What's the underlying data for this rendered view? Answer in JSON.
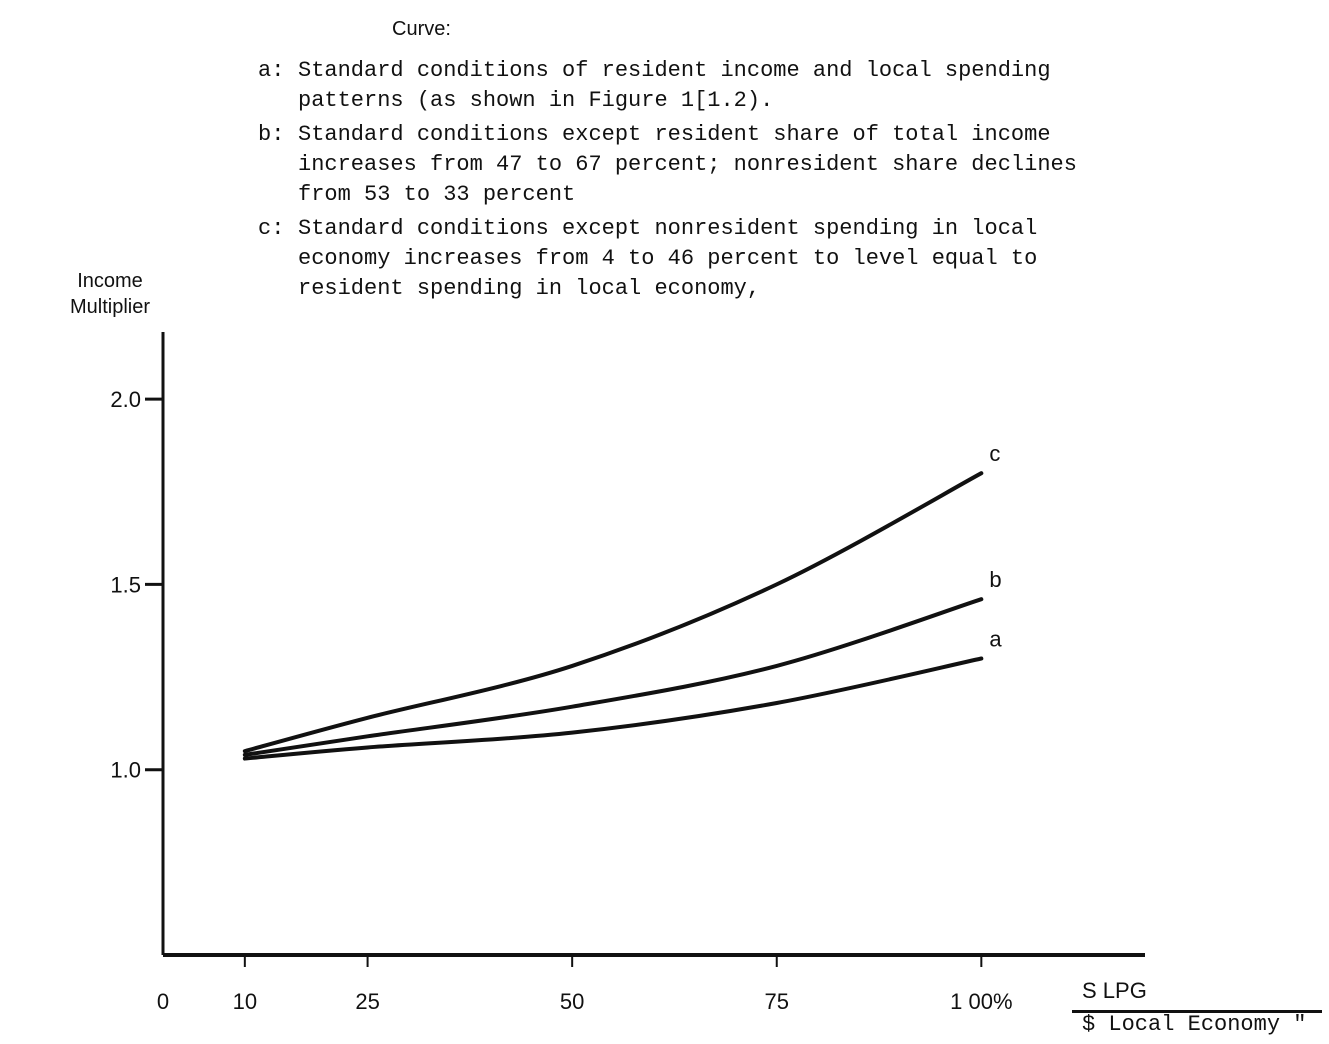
{
  "legend": {
    "title": "Curve:",
    "items": [
      {
        "key": "a:",
        "text": "Standard conditions of resident income and local spending\npatterns (as shown in Figure 1[1.2)."
      },
      {
        "key": "b:",
        "text": "Standard conditions except resident share of total income\nincreases from 47 to 67 percent; nonresident share declines\nfrom 53 to 33 percent"
      },
      {
        "key": "c:",
        "text": "Standard conditions except nonresident spending in local\neconomy increases from 4 to 46 percent to level equal to\nresident spending in local economy,"
      }
    ]
  },
  "chart_data": {
    "type": "line",
    "ylabel_line1": "Income",
    "ylabel_line2": "Multiplier",
    "xunit": "S LPG",
    "xcaption": "$ Local Economy \"",
    "xlim": [
      0,
      120
    ],
    "ylim": [
      0.5,
      2.1
    ],
    "x_ticks": [
      {
        "value": 0,
        "label": "0"
      },
      {
        "value": 10,
        "label": "10"
      },
      {
        "value": 25,
        "label": "25"
      },
      {
        "value": 50,
        "label": "50"
      },
      {
        "value": 75,
        "label": "75"
      },
      {
        "value": 100,
        "label": "1 00%"
      }
    ],
    "y_ticks": [
      {
        "value": 1.0,
        "label": "1.0"
      },
      {
        "value": 1.5,
        "label": "1.5"
      },
      {
        "value": 2.0,
        "label": "2.0"
      }
    ],
    "series": [
      {
        "name": "a",
        "x": [
          10,
          25,
          50,
          75,
          100
        ],
        "y": [
          1.03,
          1.06,
          1.1,
          1.18,
          1.3
        ]
      },
      {
        "name": "b",
        "x": [
          10,
          25,
          50,
          75,
          100
        ],
        "y": [
          1.04,
          1.09,
          1.17,
          1.28,
          1.46
        ]
      },
      {
        "name": "c",
        "x": [
          10,
          25,
          50,
          75,
          100
        ],
        "y": [
          1.05,
          1.14,
          1.28,
          1.5,
          1.8
        ]
      }
    ],
    "grid": false
  }
}
